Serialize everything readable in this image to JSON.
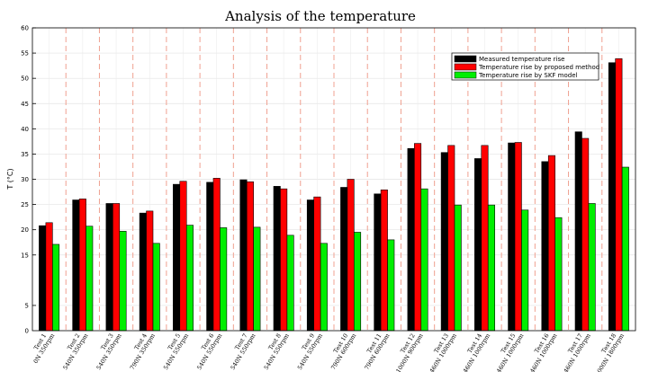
{
  "chart_data": {
    "type": "bar",
    "title": "Analysis of the temperature",
    "xlabel": "",
    "ylabel": "T (°C)",
    "ylim": [
      0,
      60
    ],
    "yticks": [
      5,
      15,
      20,
      25,
      30,
      35,
      40,
      45,
      50,
      55,
      60
    ],
    "grid": true,
    "legend_position": "top-right",
    "categories": [
      {
        "name": "Test 1",
        "condition": "0N 350rpm"
      },
      {
        "name": "Test 2",
        "condition": "540N 350rpm"
      },
      {
        "name": "Test 3",
        "condition": "540N 350rpm"
      },
      {
        "name": "Test 4",
        "condition": "790N 350rpm"
      },
      {
        "name": "Test 5",
        "condition": "540N 550rpm"
      },
      {
        "name": "Test 6",
        "condition": "540N 550rpm"
      },
      {
        "name": "Test 7",
        "condition": "540N 550rpm"
      },
      {
        "name": "Test 8",
        "condition": "540N 550rpm"
      },
      {
        "name": "Test 9",
        "condition": "540N 550rpm"
      },
      {
        "name": "Test 10",
        "condition": "790N 600rpm"
      },
      {
        "name": "Test 11",
        "condition": "790N 600rpm"
      },
      {
        "name": "Test 12",
        "condition": "1000N 900rpm"
      },
      {
        "name": "Test 13",
        "condition": "460N 1000rpm"
      },
      {
        "name": "Test 14",
        "condition": "460N 1000rpm"
      },
      {
        "name": "Test 15",
        "condition": "460N 1000rpm"
      },
      {
        "name": "Test 16",
        "condition": "460N 1000rpm"
      },
      {
        "name": "Test 17",
        "condition": "460N 1000rpm"
      },
      {
        "name": "Test 18",
        "condition": "1000N 1800rpm"
      }
    ],
    "series": [
      {
        "name": "Measured temperature rise",
        "color": "#000000",
        "values": [
          20.8,
          25.9,
          25.2,
          23.3,
          29.0,
          29.4,
          29.9,
          28.6,
          25.9,
          28.4,
          27.1,
          36.1,
          35.3,
          34.1,
          37.2,
          33.5,
          39.4,
          53.1
        ]
      },
      {
        "name": "Temperature rise by proposed method",
        "color": "#ff0000",
        "values": [
          21.4,
          26.1,
          25.2,
          23.7,
          29.6,
          30.2,
          29.5,
          28.1,
          26.5,
          30.0,
          27.9,
          37.1,
          36.7,
          36.7,
          37.3,
          34.7,
          38.1,
          53.9
        ]
      },
      {
        "name": "Temperature rise by SKF model",
        "color": "#00ee00",
        "values": [
          17.1,
          20.7,
          19.7,
          17.3,
          20.9,
          20.4,
          20.5,
          18.9,
          17.3,
          19.5,
          18.0,
          28.1,
          24.9,
          24.9,
          23.9,
          22.4,
          25.2,
          32.4
        ]
      }
    ]
  }
}
